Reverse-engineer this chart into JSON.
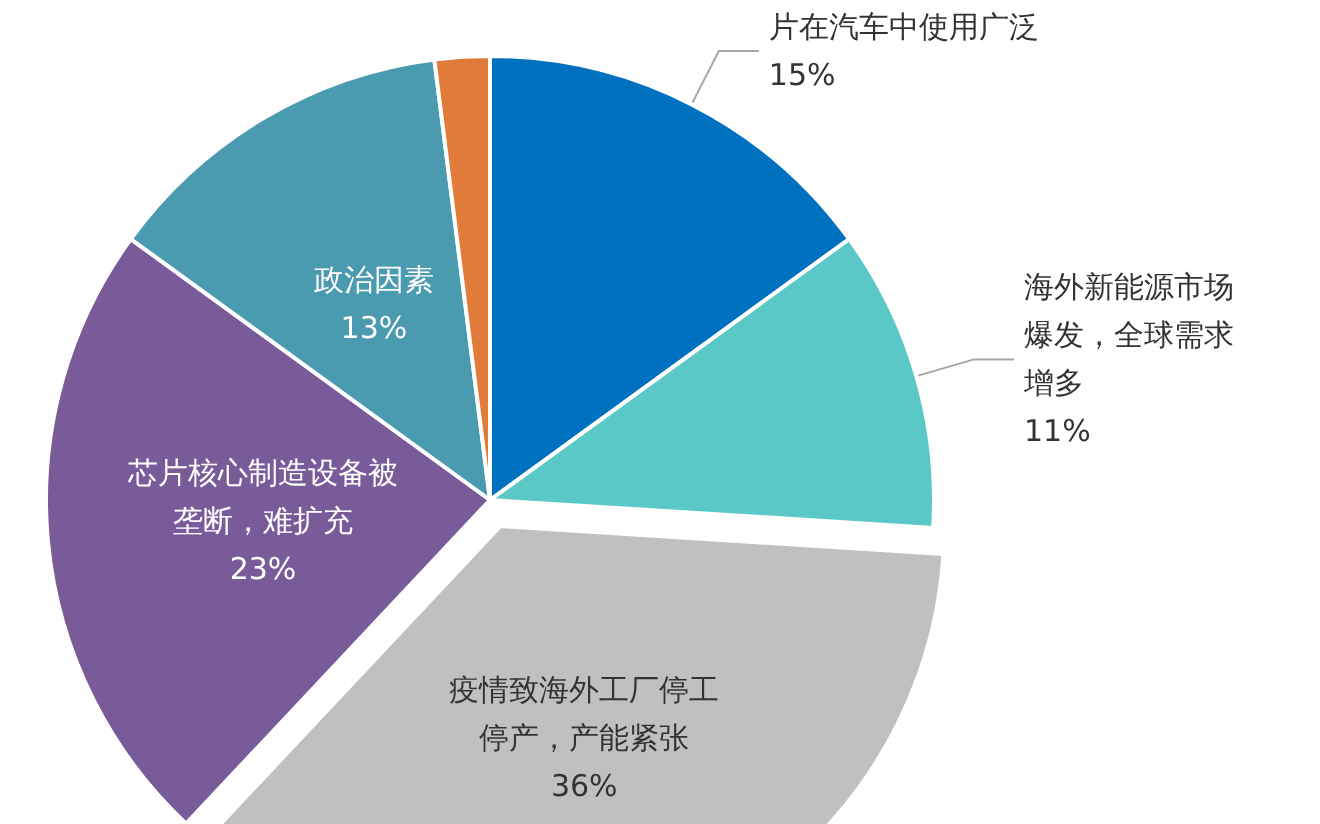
{
  "chart_data": {
    "type": "pie",
    "categories": [
      "片在汽车中使用广泛",
      "海外新能源市场爆发，全球需求增多",
      "疫情致海外工厂停工停产，产能紧张",
      "芯片核心制造设备被垄断，难扩充",
      "政治因素",
      null
    ],
    "values": [
      15,
      11,
      36,
      23,
      13,
      2
    ],
    "value_labels": [
      "15%",
      "11%",
      "36%",
      "23%",
      "13%",
      null
    ],
    "colors": [
      "#0070c0",
      "#5bc8c8",
      "#c0c0c0",
      "#7a5b99",
      "#4a9ab0",
      "#e07b39"
    ],
    "legend": false
  }
}
